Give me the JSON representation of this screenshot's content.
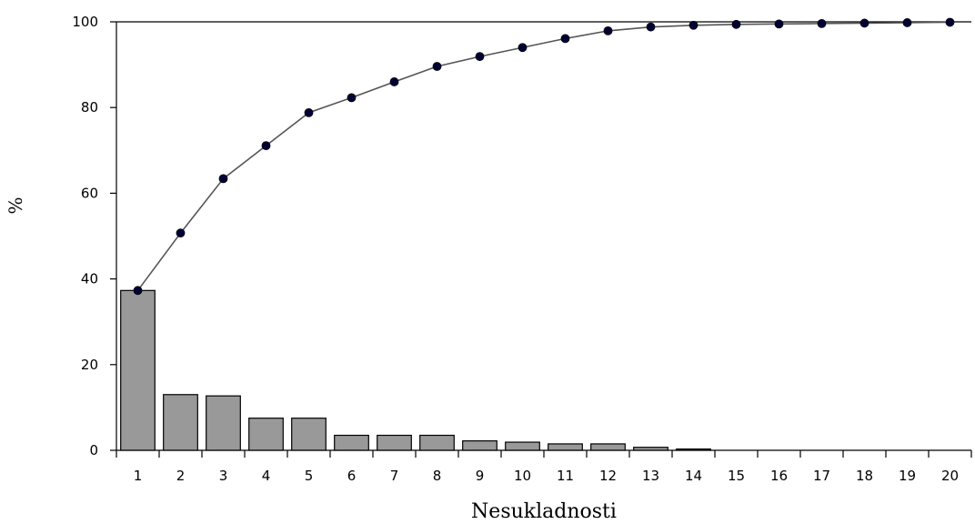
{
  "chart_data": {
    "type": "bar",
    "title": "",
    "xlabel": "Nesukladnosti",
    "ylabel": "%",
    "categories": [
      "1",
      "2",
      "3",
      "4",
      "5",
      "6",
      "7",
      "8",
      "9",
      "10",
      "11",
      "12",
      "13",
      "14",
      "15",
      "16",
      "17",
      "18",
      "19",
      "20"
    ],
    "ylim": [
      0,
      100
    ],
    "yticks": [
      "0",
      "20",
      "40",
      "60",
      "80",
      "100"
    ],
    "grid": false,
    "legend": "none",
    "series": [
      {
        "type": "bar",
        "values": [
          37.3,
          13.0,
          12.7,
          7.5,
          7.5,
          3.5,
          3.5,
          3.5,
          2.2,
          1.9,
          1.5,
          1.5,
          0.7,
          0.3,
          0,
          0,
          0,
          0,
          0,
          0
        ],
        "color": "#999999"
      },
      {
        "type": "line",
        "values": [
          37.3,
          50.7,
          63.4,
          71.1,
          78.8,
          82.3,
          86.0,
          89.6,
          91.9,
          94.0,
          96.1,
          97.9,
          98.8,
          99.2,
          99.4,
          99.5,
          99.6,
          99.7,
          99.8,
          99.9
        ],
        "color": "#000033"
      }
    ]
  }
}
